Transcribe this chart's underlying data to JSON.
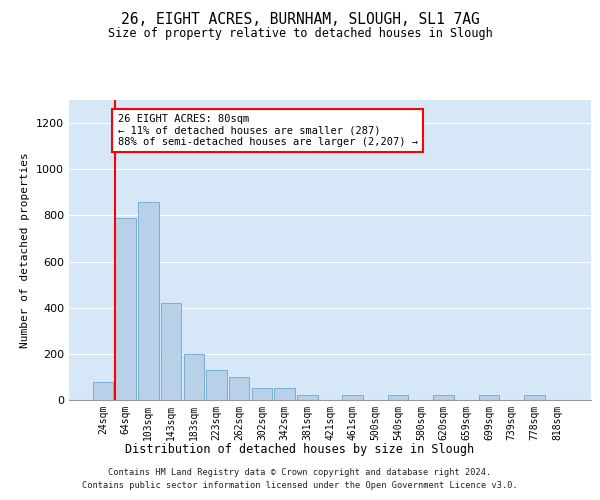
{
  "title": "26, EIGHT ACRES, BURNHAM, SLOUGH, SL1 7AG",
  "subtitle": "Size of property relative to detached houses in Slough",
  "xlabel": "Distribution of detached houses by size in Slough",
  "ylabel": "Number of detached properties",
  "categories": [
    "24sqm",
    "64sqm",
    "103sqm",
    "143sqm",
    "183sqm",
    "223sqm",
    "262sqm",
    "302sqm",
    "342sqm",
    "381sqm",
    "421sqm",
    "461sqm",
    "500sqm",
    "540sqm",
    "580sqm",
    "620sqm",
    "659sqm",
    "699sqm",
    "739sqm",
    "778sqm",
    "818sqm"
  ],
  "values": [
    80,
    790,
    860,
    420,
    200,
    130,
    100,
    50,
    50,
    20,
    0,
    20,
    0,
    20,
    0,
    20,
    0,
    20,
    0,
    20,
    0
  ],
  "bar_color": "#b8d0e8",
  "bar_edge_color": "#7aaed4",
  "red_line_x": 0.55,
  "annotation_text": "26 EIGHT ACRES: 80sqm\n← 11% of detached houses are smaller (287)\n88% of semi-detached houses are larger (2,207) →",
  "annotation_box_facecolor": "white",
  "annotation_box_edgecolor": "red",
  "ylim": [
    0,
    1300
  ],
  "yticks": [
    0,
    200,
    400,
    600,
    800,
    1000,
    1200
  ],
  "background_color": "#d6e8f7",
  "footer_line1": "Contains HM Land Registry data © Crown copyright and database right 2024.",
  "footer_line2": "Contains public sector information licensed under the Open Government Licence v3.0."
}
